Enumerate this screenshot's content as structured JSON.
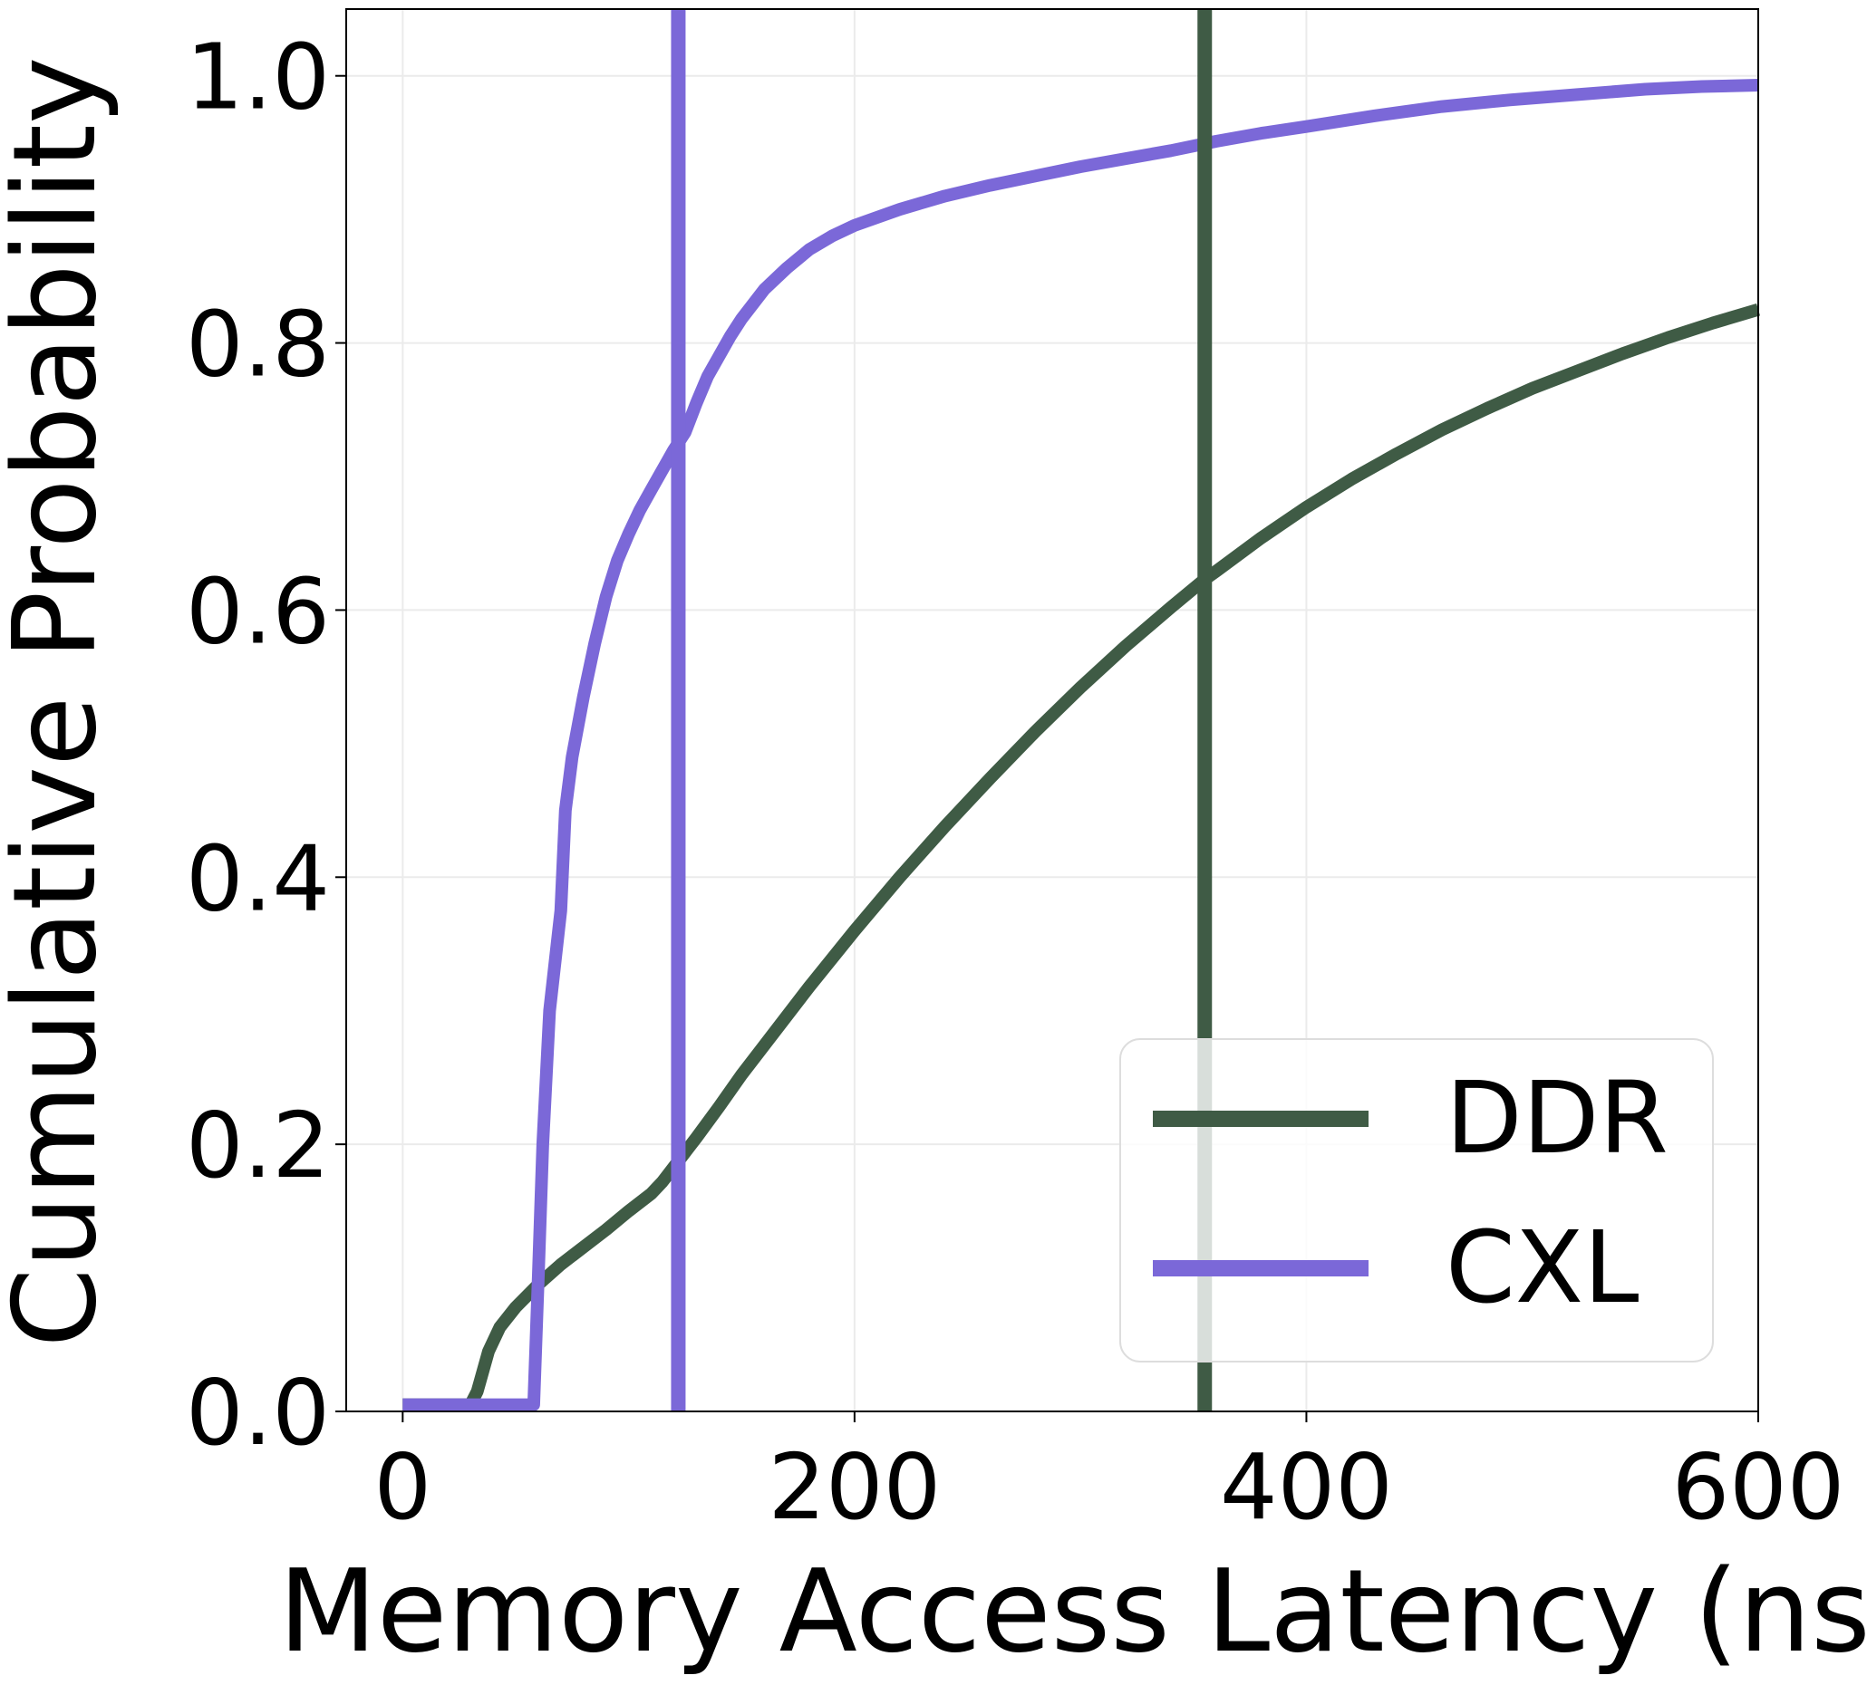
{
  "chart_data": {
    "type": "line",
    "title": "",
    "xlabel": "Memory Access Latency (ns)",
    "ylabel": "Cumulative Probability",
    "xlim": [
      -25,
      600
    ],
    "ylim": [
      0,
      1.05
    ],
    "xticks": [
      0,
      200,
      400,
      600
    ],
    "yticks": [
      0.0,
      0.2,
      0.4,
      0.6,
      0.8,
      1.0
    ],
    "xtick_labels": [
      "0",
      "200",
      "400",
      "600"
    ],
    "ytick_labels": [
      "0.0",
      "0.2",
      "0.4",
      "0.6",
      "0.8",
      "1.0"
    ],
    "grid": true,
    "legend_position": "lower-right",
    "series": [
      {
        "name": "DDR",
        "color": "#3f5b45",
        "vline": 355,
        "points": [
          [
            0,
            0.005
          ],
          [
            30,
            0.005
          ],
          [
            33,
            0.015
          ],
          [
            38,
            0.045
          ],
          [
            43,
            0.063
          ],
          [
            50,
            0.078
          ],
          [
            60,
            0.095
          ],
          [
            70,
            0.11
          ],
          [
            80,
            0.123
          ],
          [
            90,
            0.136
          ],
          [
            100,
            0.15
          ],
          [
            110,
            0.163
          ],
          [
            115,
            0.172
          ],
          [
            120,
            0.183
          ],
          [
            130,
            0.205
          ],
          [
            140,
            0.228
          ],
          [
            150,
            0.252
          ],
          [
            160,
            0.274
          ],
          [
            180,
            0.318
          ],
          [
            200,
            0.36
          ],
          [
            220,
            0.4
          ],
          [
            240,
            0.438
          ],
          [
            260,
            0.474
          ],
          [
            280,
            0.509
          ],
          [
            300,
            0.542
          ],
          [
            320,
            0.573
          ],
          [
            340,
            0.602
          ],
          [
            355,
            0.623
          ],
          [
            360,
            0.629
          ],
          [
            380,
            0.654
          ],
          [
            400,
            0.677
          ],
          [
            420,
            0.698
          ],
          [
            440,
            0.717
          ],
          [
            460,
            0.735
          ],
          [
            480,
            0.751
          ],
          [
            500,
            0.766
          ],
          [
            520,
            0.779
          ],
          [
            540,
            0.792
          ],
          [
            560,
            0.804
          ],
          [
            580,
            0.815
          ],
          [
            600,
            0.825
          ]
        ]
      },
      {
        "name": "CXL",
        "color": "#7b68d8",
        "vline": 122,
        "points": [
          [
            0,
            0.005
          ],
          [
            58,
            0.005
          ],
          [
            60,
            0.1
          ],
          [
            62,
            0.2
          ],
          [
            65,
            0.3
          ],
          [
            70,
            0.375
          ],
          [
            72,
            0.45
          ],
          [
            75,
            0.49
          ],
          [
            80,
            0.535
          ],
          [
            85,
            0.575
          ],
          [
            90,
            0.61
          ],
          [
            95,
            0.637
          ],
          [
            100,
            0.657
          ],
          [
            105,
            0.675
          ],
          [
            110,
            0.69
          ],
          [
            115,
            0.705
          ],
          [
            120,
            0.72
          ],
          [
            125,
            0.733
          ],
          [
            130,
            0.755
          ],
          [
            135,
            0.775
          ],
          [
            140,
            0.79
          ],
          [
            145,
            0.805
          ],
          [
            150,
            0.818
          ],
          [
            160,
            0.84
          ],
          [
            170,
            0.856
          ],
          [
            180,
            0.87
          ],
          [
            190,
            0.88
          ],
          [
            200,
            0.888
          ],
          [
            220,
            0.9
          ],
          [
            240,
            0.91
          ],
          [
            260,
            0.918
          ],
          [
            280,
            0.925
          ],
          [
            300,
            0.932
          ],
          [
            320,
            0.938
          ],
          [
            340,
            0.944
          ],
          [
            360,
            0.951
          ],
          [
            380,
            0.957
          ],
          [
            400,
            0.962
          ],
          [
            430,
            0.97
          ],
          [
            460,
            0.977
          ],
          [
            490,
            0.982
          ],
          [
            520,
            0.986
          ],
          [
            550,
            0.99
          ],
          [
            575,
            0.992
          ],
          [
            600,
            0.993
          ]
        ]
      }
    ]
  }
}
